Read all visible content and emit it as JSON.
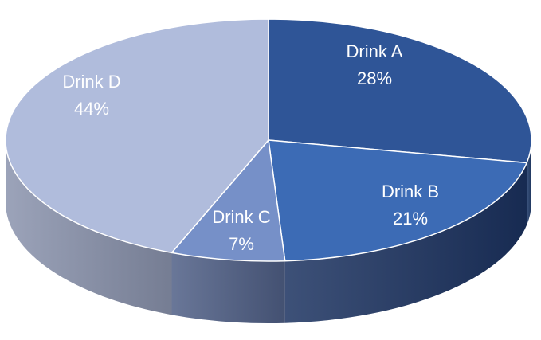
{
  "chart_data": {
    "type": "pie",
    "style": "3d",
    "slices": [
      {
        "label": "Drink A",
        "value": 28,
        "value_label": "28%",
        "color": "#2f5597"
      },
      {
        "label": "Drink B",
        "value": 21,
        "value_label": "21%",
        "color": "#3c6bb5"
      },
      {
        "label": "Drink C",
        "value": 7,
        "value_label": "7%",
        "color": "#7690c8"
      },
      {
        "label": "Drink D",
        "value": 44,
        "value_label": "44%",
        "color": "#b0bcdc"
      }
    ],
    "side_colors": [
      "#1e3a6a",
      "#1b3260",
      "#4f5f86",
      "#8a93ad"
    ],
    "title": "",
    "legend": "none"
  }
}
